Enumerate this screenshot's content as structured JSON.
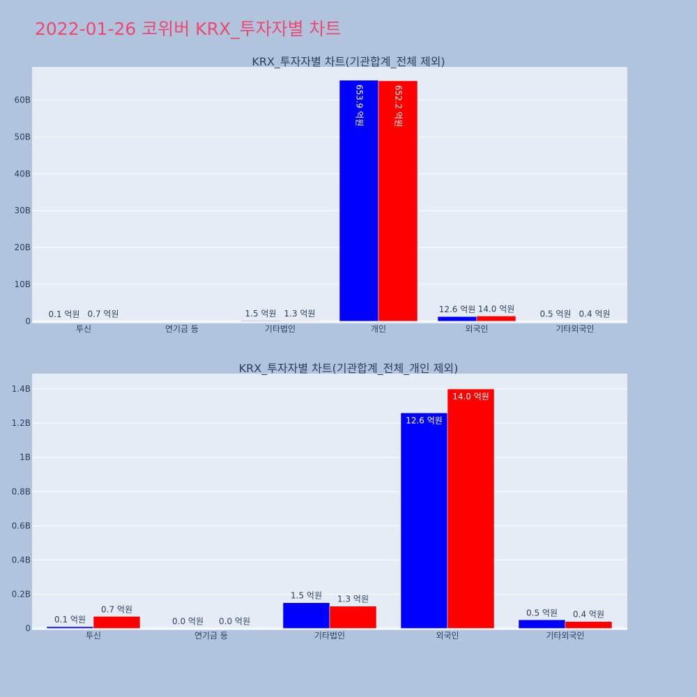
{
  "page": {
    "title": "2022-01-26 코위버 KRX_투자자별 차트"
  },
  "colors": {
    "background": "#b0c4de",
    "plot_bg": "#e5ecf6",
    "series_1": "#0000ff",
    "series_2": "#ff0000",
    "title": "#ef476f",
    "text": "#2a3f5f"
  },
  "chart_data": [
    {
      "type": "bar",
      "title": "KRX_투자자별 차트(기관합계_전체 제외)",
      "categories": [
        "투신",
        "연기금 등",
        "기타법인",
        "개인",
        "외국인",
        "기타외국인"
      ],
      "series": [
        {
          "color": "#0000ff",
          "values": [
            10000000,
            0,
            150000000,
            65390000000,
            1260000000,
            50000000
          ],
          "labels": [
            "0.1 억원",
            "",
            "1.5 억원",
            "653.9 억원",
            "12.6 억원",
            "0.5 억원"
          ]
        },
        {
          "color": "#ff0000",
          "values": [
            70000000,
            0,
            130000000,
            65220000000,
            1400000000,
            40000000
          ],
          "labels": [
            "0.7 억원",
            "",
            "1.3 억원",
            "652.2 억원",
            "14.0 억원",
            "0.4 억원"
          ]
        }
      ],
      "yticks": [
        "0",
        "10B",
        "20B",
        "30B",
        "40B",
        "50B",
        "60B"
      ],
      "ytick_values": [
        0,
        10000000000,
        20000000000,
        30000000000,
        40000000000,
        50000000000,
        60000000000
      ],
      "ylim": [
        -600000000,
        69000000000
      ],
      "grid": true,
      "xlabel": "",
      "ylabel": ""
    },
    {
      "type": "bar",
      "title": "KRX_투자자별 차트(기관합계_전체_개인 제외)",
      "categories": [
        "투신",
        "연기금 등",
        "기타법인",
        "외국인",
        "기타외국인"
      ],
      "series": [
        {
          "color": "#0000ff",
          "values": [
            10000000,
            0,
            150000000,
            1260000000,
            50000000
          ],
          "labels": [
            "0.1 억원",
            "0.0 억원",
            "1.5 억원",
            "12.6 억원",
            "0.5 억원"
          ]
        },
        {
          "color": "#ff0000",
          "values": [
            70000000,
            0,
            130000000,
            1400000000,
            40000000
          ],
          "labels": [
            "0.7 억원",
            "0.0 억원",
            "1.3 억원",
            "14.0 억원",
            "0.4 억원"
          ]
        }
      ],
      "yticks": [
        "0",
        "0.2B",
        "0.4B",
        "0.6B",
        "0.8B",
        "1B",
        "1.2B",
        "1.4B"
      ],
      "ytick_values": [
        0,
        200000000,
        400000000,
        600000000,
        800000000,
        1000000000,
        1200000000,
        1400000000
      ],
      "ylim": [
        -10000000,
        1490000000
      ],
      "grid": true,
      "xlabel": "",
      "ylabel": ""
    }
  ]
}
